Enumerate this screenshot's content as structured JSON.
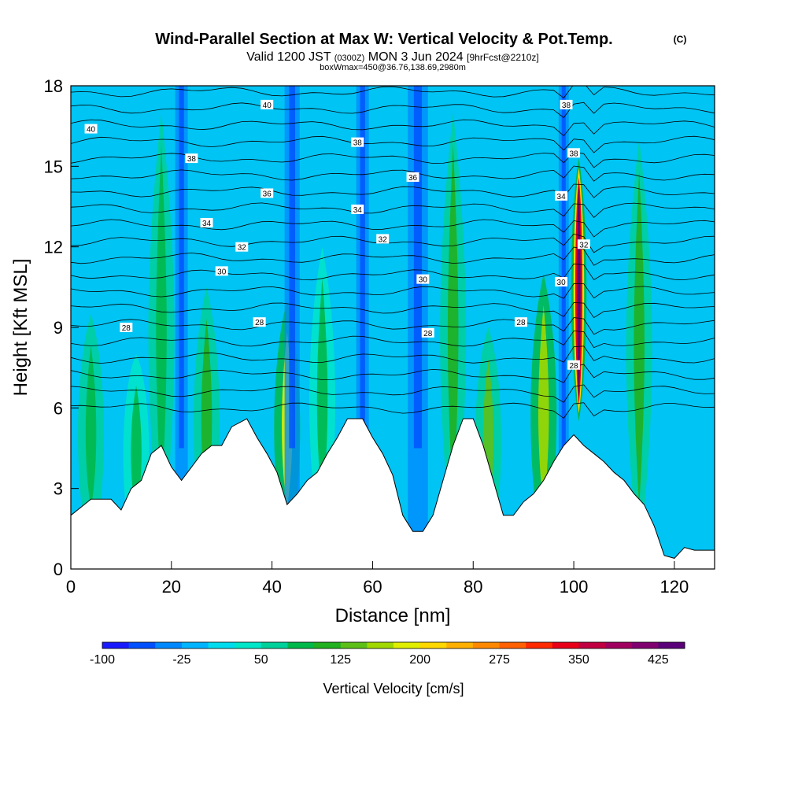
{
  "chart_data": {
    "type": "heatmap",
    "title": "Wind-Parallel Section at Max W: Vertical Velocity & Pot.Temp.",
    "title_mark": "(C)",
    "subtitle": {
      "valid_prefix": "Valid 1200 JST",
      "utc": "(0300Z)",
      "date": "MON 3 Jun 2024",
      "forecast": "[9hrFcst@2210z]"
    },
    "box_info": "boxWmax=450@36.76,138.69,2980m",
    "xlabel": "Distance [nm]",
    "ylabel": "Height [Kft MSL]",
    "xlim": [
      0,
      128
    ],
    "ylim": [
      0,
      18
    ],
    "x_ticks": [
      0,
      20,
      40,
      60,
      80,
      100,
      120
    ],
    "y_ticks": [
      0,
      3,
      6,
      9,
      12,
      15,
      18
    ],
    "colorbar": {
      "label": "Vertical Velocity [cm/s]",
      "tick_labels": [
        "-100",
        "-25",
        "50",
        "125",
        "200",
        "275",
        "350",
        "425"
      ],
      "tick_values": [
        -100,
        -25,
        50,
        125,
        200,
        275,
        350,
        425
      ],
      "colors": [
        "#1a1aff",
        "#0050ff",
        "#0088ff",
        "#00b4ff",
        "#00dcee",
        "#00e6c8",
        "#00d09a",
        "#00b84a",
        "#20b020",
        "#5cc018",
        "#a0d800",
        "#e0ee00",
        "#ffd800",
        "#ffb000",
        "#ff8800",
        "#ff6000",
        "#ff2a00",
        "#e80018",
        "#c00040",
        "#a00060",
        "#800070",
        "#5a0078"
      ]
    },
    "terrain": [
      [
        0,
        2
      ],
      [
        4,
        2.6
      ],
      [
        8,
        2.6
      ],
      [
        10,
        2.2
      ],
      [
        12,
        3.0
      ],
      [
        14,
        3.3
      ],
      [
        16,
        4.3
      ],
      [
        18,
        4.6
      ],
      [
        20,
        3.8
      ],
      [
        22,
        3.3
      ],
      [
        24,
        3.8
      ],
      [
        26,
        4.3
      ],
      [
        28,
        4.6
      ],
      [
        30,
        4.6
      ],
      [
        32,
        5.3
      ],
      [
        35,
        5.6
      ],
      [
        37,
        4.9
      ],
      [
        39,
        4.3
      ],
      [
        41,
        3.6
      ],
      [
        43,
        2.4
      ],
      [
        45,
        2.8
      ],
      [
        47,
        3.3
      ],
      [
        49,
        3.6
      ],
      [
        51,
        4.3
      ],
      [
        53,
        4.9
      ],
      [
        55,
        5.6
      ],
      [
        58,
        5.6
      ],
      [
        60,
        4.9
      ],
      [
        62,
        4.3
      ],
      [
        64,
        3.5
      ],
      [
        66,
        2.0
      ],
      [
        68,
        1.4
      ],
      [
        70,
        1.4
      ],
      [
        72,
        2.0
      ],
      [
        74,
        3.3
      ],
      [
        76,
        4.6
      ],
      [
        78,
        5.6
      ],
      [
        80,
        5.6
      ],
      [
        82,
        4.6
      ],
      [
        84,
        3.3
      ],
      [
        86,
        2.0
      ],
      [
        88,
        2.0
      ],
      [
        90,
        2.5
      ],
      [
        92,
        2.8
      ],
      [
        94,
        3.3
      ],
      [
        96,
        4.0
      ],
      [
        98,
        4.6
      ],
      [
        100,
        5.0
      ],
      [
        102,
        4.6
      ],
      [
        104,
        4.3
      ],
      [
        106,
        4.0
      ],
      [
        108,
        3.6
      ],
      [
        110,
        3.3
      ],
      [
        112,
        2.8
      ],
      [
        114,
        2.4
      ],
      [
        116,
        1.6
      ],
      [
        118,
        0.5
      ],
      [
        120,
        0.4
      ],
      [
        122,
        0.8
      ],
      [
        124,
        0.7
      ],
      [
        128,
        0.7
      ]
    ],
    "updraft_core": {
      "x": 101,
      "bottom": 5.5,
      "top": 15.3,
      "peak": 450
    },
    "downdraft_cores": [
      {
        "x": 22,
        "width": 2.5
      },
      {
        "x": 44,
        "width": 3.0
      },
      {
        "x": 58,
        "width": 2.5
      },
      {
        "x": 69,
        "width": 4.0
      },
      {
        "x": 98,
        "width": 2.0
      }
    ],
    "updraft_bands": [
      {
        "x": 4,
        "top": 9.5,
        "value": 80
      },
      {
        "x": 13,
        "top": 8.0,
        "value": 70
      },
      {
        "x": 18,
        "top": 17.0,
        "value": 75
      },
      {
        "x": 27,
        "top": 10.5,
        "value": 90
      },
      {
        "x": 43,
        "top": 10.0,
        "value": 170
      },
      {
        "x": 50,
        "top": 12.0,
        "value": 70
      },
      {
        "x": 76,
        "top": 17.0,
        "value": 90
      },
      {
        "x": 83,
        "top": 9.0,
        "value": 120
      },
      {
        "x": 94,
        "top": 11.0,
        "value": 150
      },
      {
        "x": 113,
        "top": 16.0,
        "value": 110
      }
    ],
    "theta_contours": {
      "interval_c": 1,
      "labels": [
        {
          "x": 4,
          "y": 16.4,
          "text": "40"
        },
        {
          "x": 39,
          "y": 17.3,
          "text": "40"
        },
        {
          "x": 98.5,
          "y": 17.3,
          "text": "38"
        },
        {
          "x": 24,
          "y": 15.3,
          "text": "38"
        },
        {
          "x": 57,
          "y": 15.9,
          "text": "38"
        },
        {
          "x": 100,
          "y": 15.5,
          "text": "38"
        },
        {
          "x": 39,
          "y": 14.0,
          "text": "36"
        },
        {
          "x": 68,
          "y": 14.6,
          "text": "36"
        },
        {
          "x": 27,
          "y": 12.9,
          "text": "34"
        },
        {
          "x": 57,
          "y": 13.4,
          "text": "34"
        },
        {
          "x": 97.5,
          "y": 13.9,
          "text": "34"
        },
        {
          "x": 34,
          "y": 12.0,
          "text": "32"
        },
        {
          "x": 62,
          "y": 12.3,
          "text": "32"
        },
        {
          "x": 102,
          "y": 12.1,
          "text": "32"
        },
        {
          "x": 30,
          "y": 11.1,
          "text": "30"
        },
        {
          "x": 70,
          "y": 10.8,
          "text": "30"
        },
        {
          "x": 97.5,
          "y": 10.7,
          "text": "30"
        },
        {
          "x": 11,
          "y": 9.0,
          "text": "28"
        },
        {
          "x": 37.5,
          "y": 9.2,
          "text": "28"
        },
        {
          "x": 71,
          "y": 8.8,
          "text": "28"
        },
        {
          "x": 89.5,
          "y": 9.2,
          "text": "28"
        },
        {
          "x": 100,
          "y": 7.6,
          "text": "28"
        }
      ]
    }
  }
}
